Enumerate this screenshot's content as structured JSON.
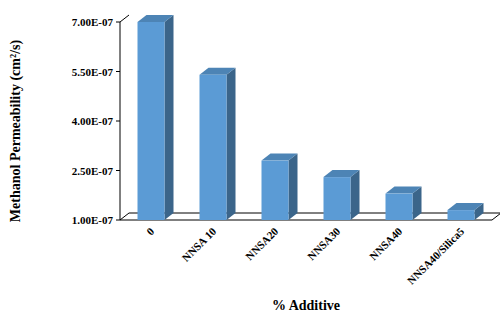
{
  "chart_data": {
    "type": "bar",
    "x_label": "% Additive",
    "y_label": "Methanol Permeability (cm²/s)",
    "categories": [
      "0",
      "NNSA 10",
      "NNSA20",
      "NNSA30",
      "NNSA40",
      "NNSA40/Silica5"
    ],
    "values": [
      7e-07,
      5.4e-07,
      2.8e-07,
      2.3e-07,
      1.8e-07,
      1.3e-07
    ],
    "color": "#5b9bd5",
    "ylim": [
      1e-07,
      7e-07
    ],
    "yticks": [
      {
        "value": 1e-07,
        "label": "1.00E-07"
      },
      {
        "value": 2.5e-07,
        "label": "2.50E-07"
      },
      {
        "value": 4e-07,
        "label": "4.00E-07"
      },
      {
        "value": 5.5e-07,
        "label": "5.50E-07"
      },
      {
        "value": 7e-07,
        "label": "7.00E-07"
      }
    ],
    "grid": false
  }
}
